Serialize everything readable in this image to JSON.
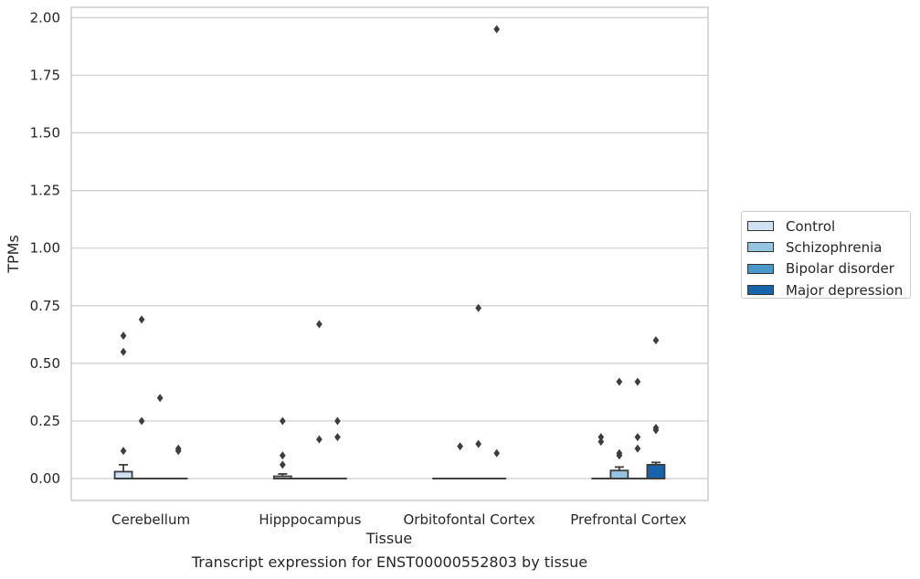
{
  "chart_data": {
    "type": "box",
    "title": "",
    "caption": "Transcript expression for ENST00000552803 by tissue",
    "xlabel": "Tissue",
    "ylabel": "TPMs",
    "ylim": [
      -0.095,
      2.045
    ],
    "yticks": [
      "0.00",
      "0.25",
      "0.50",
      "0.75",
      "1.00",
      "1.25",
      "1.50",
      "1.75",
      "2.00"
    ],
    "grid": "horizontal",
    "legend_position": "right",
    "categories": [
      "Cerebellum",
      "Hipppocampus",
      "Orbitofontal Cortex",
      "Prefrontal Cortex"
    ],
    "series": [
      {
        "name": "Control",
        "color": "#d0e1f2",
        "boxes": [
          {
            "q1": 0.0,
            "median": 0.0,
            "q3": 0.03,
            "whisker_low": 0.0,
            "whisker_high": 0.06,
            "outliers": [
              0.12,
              0.55,
              0.62
            ]
          },
          {
            "q1": 0.0,
            "median": 0.0,
            "q3": 0.01,
            "whisker_low": 0.0,
            "whisker_high": 0.02,
            "outliers": [
              0.06,
              0.1,
              0.25
            ]
          },
          {
            "q1": 0.0,
            "median": 0.0,
            "q3": 0.0,
            "whisker_low": 0.0,
            "whisker_high": 0.0,
            "outliers": []
          },
          {
            "q1": 0.0,
            "median": 0.0,
            "q3": 0.0,
            "whisker_low": 0.0,
            "whisker_high": 0.0,
            "outliers": [
              0.16,
              0.18
            ]
          }
        ]
      },
      {
        "name": "Schizophrenia",
        "color": "#94c4df",
        "boxes": [
          {
            "q1": 0.0,
            "median": 0.0,
            "q3": 0.0,
            "whisker_low": 0.0,
            "whisker_high": 0.0,
            "outliers": [
              0.25,
              0.69
            ]
          },
          {
            "q1": 0.0,
            "median": 0.0,
            "q3": 0.0,
            "whisker_low": 0.0,
            "whisker_high": 0.0,
            "outliers": []
          },
          {
            "q1": 0.0,
            "median": 0.0,
            "q3": 0.0,
            "whisker_low": 0.0,
            "whisker_high": 0.0,
            "outliers": [
              0.14
            ]
          },
          {
            "q1": 0.0,
            "median": 0.0,
            "q3": 0.035,
            "whisker_low": 0.0,
            "whisker_high": 0.05,
            "outliers": [
              0.1,
              0.11,
              0.42
            ]
          }
        ]
      },
      {
        "name": "Bipolar disorder",
        "color": "#4a98c9",
        "boxes": [
          {
            "q1": 0.0,
            "median": 0.0,
            "q3": 0.0,
            "whisker_low": 0.0,
            "whisker_high": 0.0,
            "outliers": [
              0.35
            ]
          },
          {
            "q1": 0.0,
            "median": 0.0,
            "q3": 0.0,
            "whisker_low": 0.0,
            "whisker_high": 0.0,
            "outliers": [
              0.17,
              0.67
            ]
          },
          {
            "q1": 0.0,
            "median": 0.0,
            "q3": 0.0,
            "whisker_low": 0.0,
            "whisker_high": 0.0,
            "outliers": [
              0.15,
              0.74
            ]
          },
          {
            "q1": 0.0,
            "median": 0.0,
            "q3": 0.0,
            "whisker_low": 0.0,
            "whisker_high": 0.0,
            "outliers": [
              0.13,
              0.18,
              0.42
            ]
          }
        ]
      },
      {
        "name": "Major depression",
        "color": "#1764ab",
        "boxes": [
          {
            "q1": 0.0,
            "median": 0.0,
            "q3": 0.0,
            "whisker_low": 0.0,
            "whisker_high": 0.0,
            "outliers": [
              0.12,
              0.13
            ]
          },
          {
            "q1": 0.0,
            "median": 0.0,
            "q3": 0.0,
            "whisker_low": 0.0,
            "whisker_high": 0.0,
            "outliers": [
              0.18,
              0.25
            ]
          },
          {
            "q1": 0.0,
            "median": 0.0,
            "q3": 0.0,
            "whisker_low": 0.0,
            "whisker_high": 0.0,
            "outliers": [
              0.11,
              1.95
            ]
          },
          {
            "q1": 0.0,
            "median": 0.0,
            "q3": 0.06,
            "whisker_low": 0.0,
            "whisker_high": 0.07,
            "outliers": [
              0.21,
              0.22,
              0.6
            ]
          }
        ]
      }
    ]
  }
}
